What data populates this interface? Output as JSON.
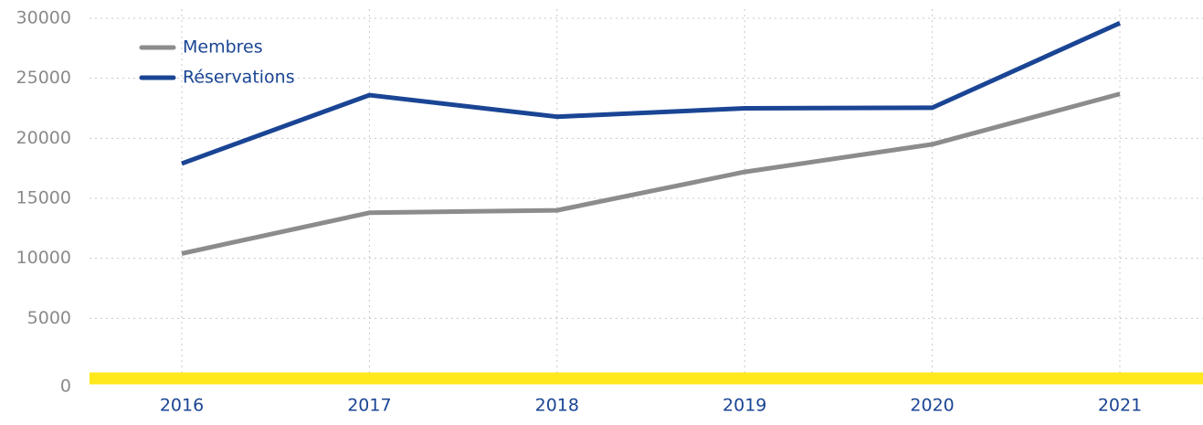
{
  "chart_data": {
    "type": "line",
    "categories": [
      "2016",
      "2017",
      "2018",
      "2019",
      "2020",
      "2021"
    ],
    "series": [
      {
        "name": "Membres",
        "color": "#8c8c8c",
        "values": [
          10400,
          13800,
          14000,
          17200,
          19500,
          23700
        ]
      },
      {
        "name": "Réservations",
        "color": "#1a4594",
        "values": [
          17900,
          23600,
          21800,
          22500,
          22550,
          29600
        ]
      }
    ],
    "ylim": [
      0,
      30000
    ],
    "yticks": [
      0,
      5000,
      10000,
      15000,
      20000,
      25000,
      30000
    ],
    "grid": true,
    "legend": "top-left",
    "baseline_color": "#ffe81c"
  }
}
